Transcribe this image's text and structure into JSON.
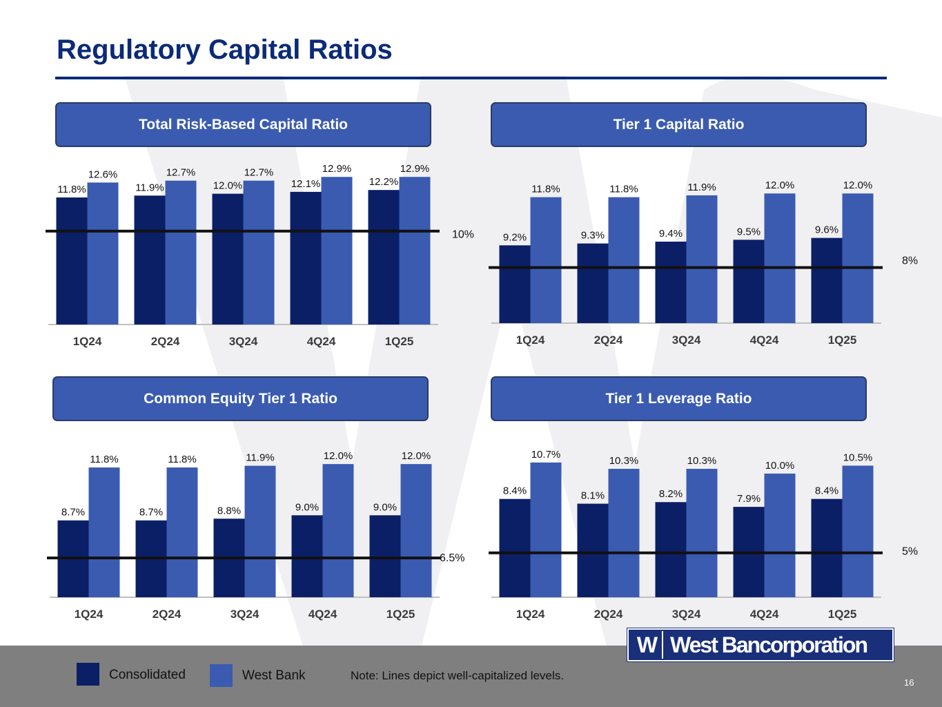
{
  "page": {
    "title": "Regulatory Capital Ratios",
    "page_number": "16",
    "note": "Note: Lines depict well-capitalized levels.",
    "logo_mark": "W",
    "logo_text": "West Bancorporation"
  },
  "legend": [
    {
      "label": "Consolidated",
      "color": "#0b1f66"
    },
    {
      "label": "West Bank",
      "color": "#3a5bb0"
    }
  ],
  "colors": {
    "consolidated": "#0b1f66",
    "west_bank": "#3a5bb0",
    "threshold": "#111111",
    "header": "#3a5bb0"
  },
  "chart_data": [
    {
      "id": "trbc",
      "type": "bar",
      "title": "Total Risk-Based Capital Ratio",
      "categories": [
        "1Q24",
        "2Q24",
        "3Q24",
        "4Q24",
        "1Q25"
      ],
      "series": [
        {
          "name": "Consolidated",
          "values": [
            11.8,
            11.9,
            12.0,
            12.1,
            12.2
          ],
          "labels": [
            "11.8%",
            "11.9%",
            "12.0%",
            "12.1%",
            "12.2%"
          ]
        },
        {
          "name": "West Bank",
          "values": [
            12.6,
            12.7,
            12.7,
            12.9,
            12.9
          ],
          "labels": [
            "12.6%",
            "12.7%",
            "12.7%",
            "12.9%",
            "12.9%"
          ]
        }
      ],
      "threshold": {
        "value": 10,
        "label": "10%"
      },
      "ylim": [
        5,
        13.5
      ]
    },
    {
      "id": "t1c",
      "type": "bar",
      "title": "Tier 1 Capital Ratio",
      "categories": [
        "1Q24",
        "2Q24",
        "3Q24",
        "4Q24",
        "1Q25"
      ],
      "series": [
        {
          "name": "Consolidated",
          "values": [
            9.2,
            9.3,
            9.4,
            9.5,
            9.6
          ],
          "labels": [
            "9.2%",
            "9.3%",
            "9.4%",
            "9.5%",
            "9.6%"
          ]
        },
        {
          "name": "West Bank",
          "values": [
            11.8,
            11.8,
            11.9,
            12.0,
            12.0
          ],
          "labels": [
            "11.8%",
            "11.8%",
            "11.9%",
            "12.0%",
            "12.0%"
          ]
        }
      ],
      "threshold": {
        "value": 8,
        "label": "8%"
      },
      "ylim": [
        5,
        13.5
      ]
    },
    {
      "id": "cet1",
      "type": "bar",
      "title": "Common Equity Tier 1 Ratio",
      "categories": [
        "1Q24",
        "2Q24",
        "3Q24",
        "4Q24",
        "1Q25"
      ],
      "series": [
        {
          "name": "Consolidated",
          "values": [
            8.7,
            8.7,
            8.8,
            9.0,
            9.0
          ],
          "labels": [
            "8.7%",
            "8.7%",
            "8.8%",
            "9.0%",
            "9.0%"
          ]
        },
        {
          "name": "West Bank",
          "values": [
            11.8,
            11.8,
            11.9,
            12.0,
            12.0
          ],
          "labels": [
            "11.8%",
            "11.8%",
            "11.9%",
            "12.0%",
            "12.0%"
          ]
        }
      ],
      "threshold": {
        "value": 6.5,
        "label": "6.5%"
      },
      "ylim": [
        4.2,
        13.3
      ]
    },
    {
      "id": "t1l",
      "type": "bar",
      "title": "Tier 1 Leverage Ratio",
      "categories": [
        "1Q24",
        "2Q24",
        "3Q24",
        "4Q24",
        "1Q25"
      ],
      "series": [
        {
          "name": "Consolidated",
          "values": [
            8.4,
            8.1,
            8.2,
            7.9,
            8.4
          ],
          "labels": [
            "8.4%",
            "8.1%",
            "8.2%",
            "7.9%",
            "8.4%"
          ]
        },
        {
          "name": "West Bank",
          "values": [
            10.7,
            10.3,
            10.3,
            10.0,
            10.5
          ],
          "labels": [
            "10.7%",
            "10.3%",
            "10.3%",
            "10.0%",
            "10.5%"
          ]
        }
      ],
      "threshold": {
        "value": 5,
        "label": "5%"
      },
      "ylim": [
        2.2,
        12.0
      ]
    }
  ]
}
